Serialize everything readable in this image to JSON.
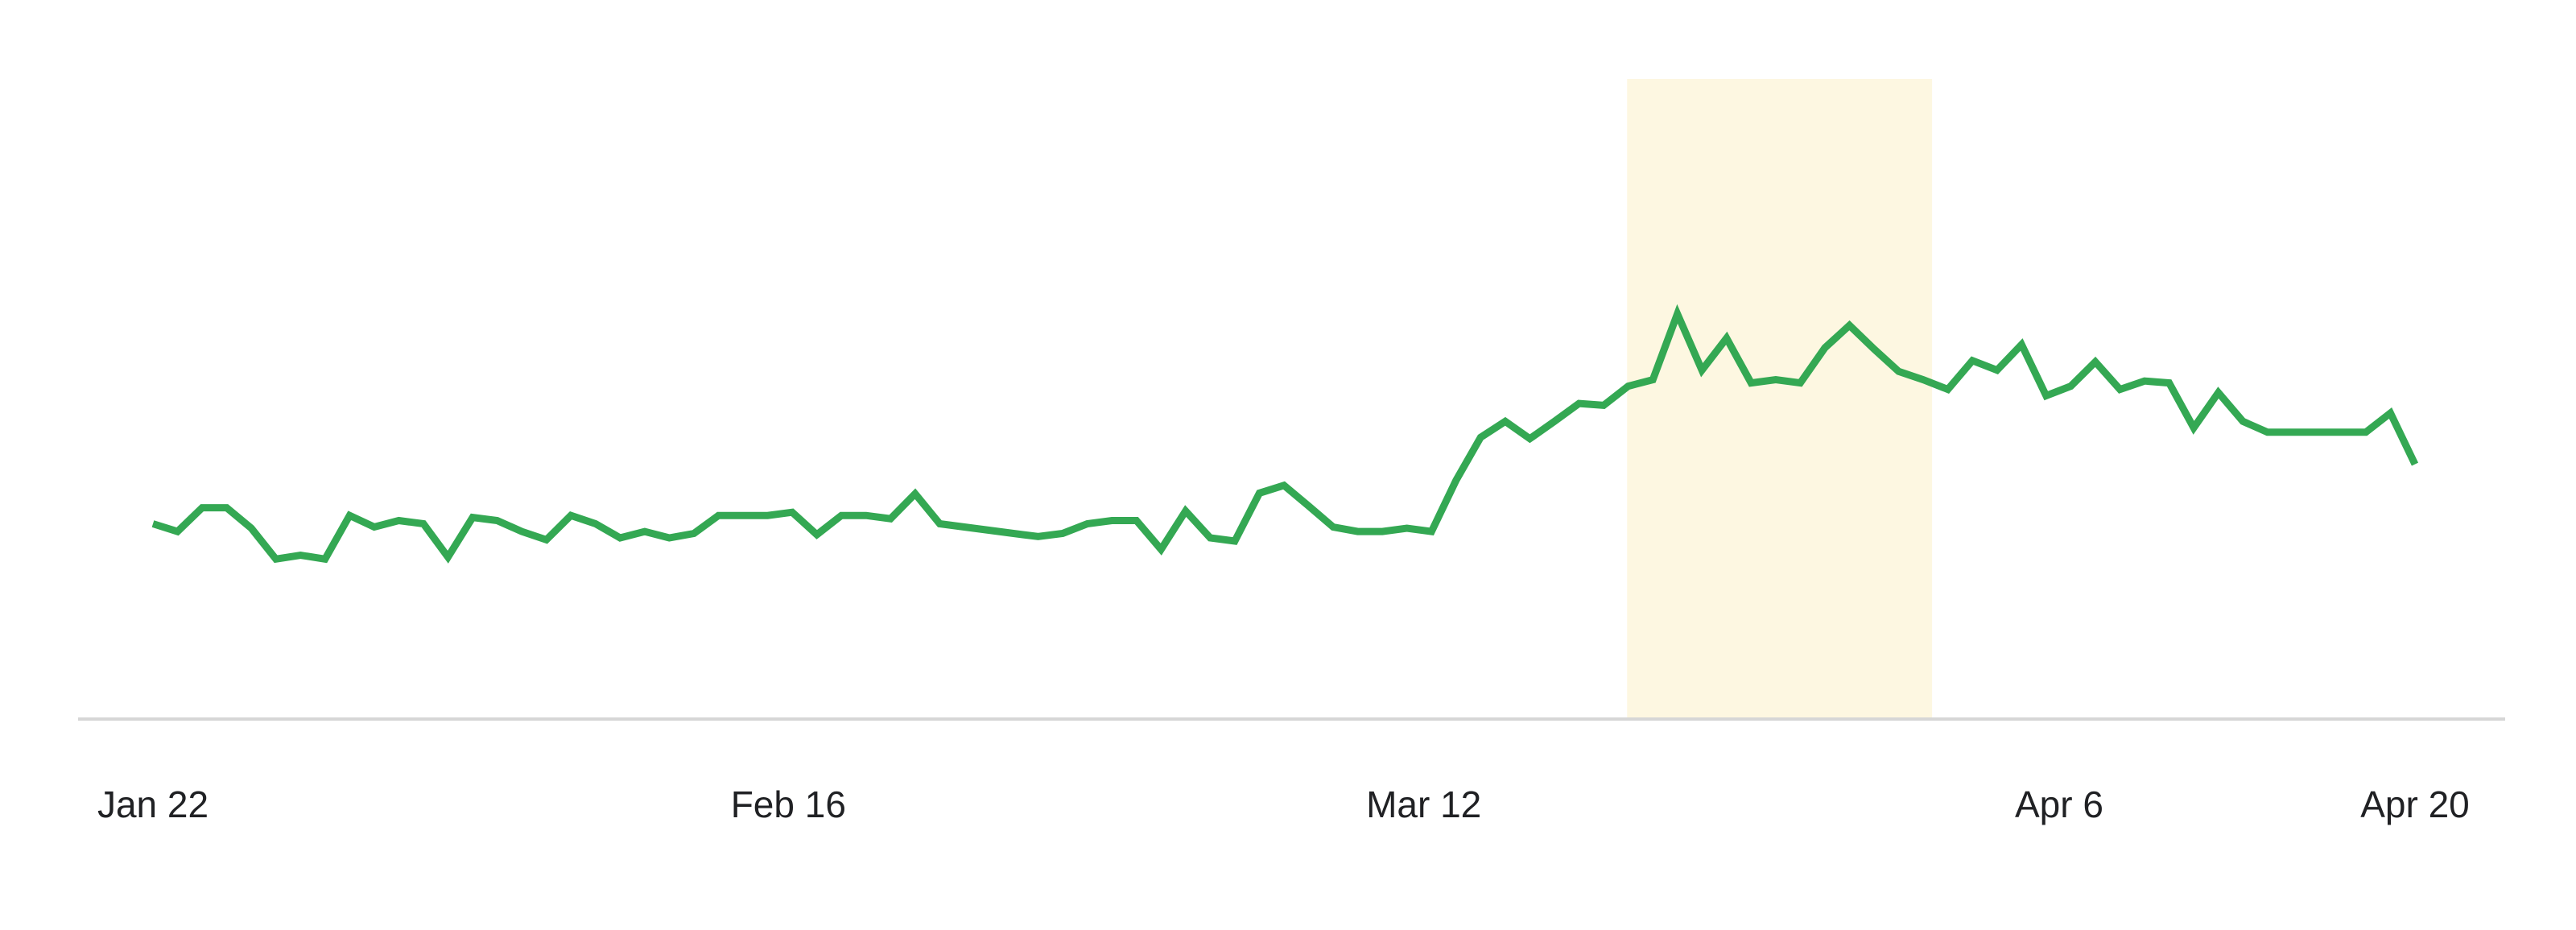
{
  "chart_data": {
    "type": "line",
    "title": "",
    "xlabel": "",
    "ylabel": "",
    "x_start": "2020-01-22",
    "x_end": "2020-04-20",
    "x_ticks": [
      {
        "date": "2020-01-22",
        "label": "Jan 22"
      },
      {
        "date": "2020-02-16",
        "label": "Feb 16"
      },
      {
        "date": "2020-03-12",
        "label": "Mar 12"
      },
      {
        "date": "2020-04-06",
        "label": "Apr 6"
      },
      {
        "date": "2020-04-20",
        "label": "Apr 20"
      }
    ],
    "ylim": [
      0,
      100
    ],
    "y_axis_labels_shown": false,
    "grid": false,
    "highlight_band": {
      "start": "2020-03-20",
      "end": "2020-04-01",
      "color": "#fdf7e1"
    },
    "line_color": "#34a853",
    "baseline_color": "#d6d6d6",
    "series": [
      {
        "values": [
          30.5,
          29.3,
          33.0,
          33.0,
          29.8,
          25.0,
          25.6,
          25.0,
          31.8,
          30.0,
          31.0,
          30.5,
          25.3,
          31.5,
          31.0,
          29.3,
          28.0,
          31.8,
          30.5,
          28.3,
          29.3,
          28.3,
          29.0,
          31.8,
          31.8,
          31.8,
          32.3,
          28.8,
          31.8,
          31.8,
          31.3,
          35.2,
          30.5,
          30.0,
          29.5,
          29.0,
          28.5,
          29.0,
          30.5,
          31.0,
          31.0,
          26.5,
          32.5,
          28.3,
          27.8,
          35.3,
          36.5,
          33.3,
          30.0,
          29.3,
          29.3,
          29.8,
          29.3,
          37.3,
          44.0,
          46.5,
          43.8,
          46.5,
          49.3,
          49.0,
          52.0,
          53.0,
          63.3,
          54.5,
          59.5,
          52.5,
          53.0,
          52.5,
          58.0,
          61.5,
          57.8,
          54.3,
          53.0,
          51.5,
          56.0,
          54.5,
          58.5,
          50.5,
          52.0,
          55.8,
          51.5,
          52.8,
          52.5,
          45.5,
          51.0,
          46.5,
          44.8,
          44.8,
          44.8,
          44.8,
          44.8,
          47.8,
          39.8
        ]
      }
    ]
  }
}
